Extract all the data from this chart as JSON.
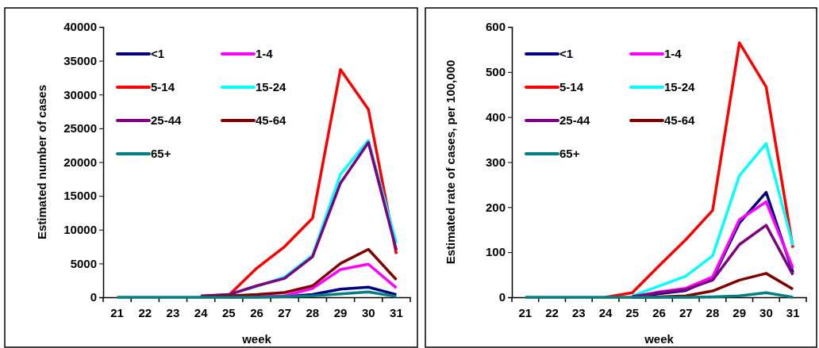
{
  "chart_data": [
    {
      "type": "line",
      "xlabel": "week",
      "ylabel": "Estimated number of cases",
      "categories": [
        "21",
        "22",
        "23",
        "24",
        "25",
        "26",
        "27",
        "28",
        "29",
        "30",
        "31"
      ],
      "ylim": [
        0,
        40000
      ],
      "yticks": [
        0,
        5000,
        10000,
        15000,
        20000,
        25000,
        30000,
        35000,
        40000
      ],
      "grid": false,
      "legend": "top left",
      "marker": "none",
      "line_style": "solid",
      "series": [
        {
          "name": "<1",
          "color": "#000080",
          "values": [
            null,
            null,
            null,
            null,
            null,
            null,
            100,
            400,
            1200,
            1500,
            400
          ]
        },
        {
          "name": "1-4",
          "color": "#ff00ff",
          "values": [
            null,
            null,
            null,
            null,
            0,
            100,
            200,
            1300,
            4100,
            4900,
            1400
          ]
        },
        {
          "name": "5-14",
          "color": "#ff0000",
          "values": [
            null,
            null,
            null,
            100,
            300,
            4300,
            7500,
            11700,
            33700,
            27800,
            6400
          ]
        },
        {
          "name": "15-24",
          "color": "#00ffff",
          "values": [
            null,
            null,
            null,
            100,
            400,
            1600,
            3000,
            6200,
            18200,
            23200,
            8000
          ]
        },
        {
          "name": "25-44",
          "color": "#800080",
          "values": [
            null,
            null,
            null,
            200,
            400,
            1700,
            2800,
            6000,
            16900,
            22900,
            7000
          ]
        },
        {
          "name": "45-64",
          "color": "#800000",
          "values": [
            null,
            null,
            null,
            100,
            200,
            400,
            700,
            1700,
            5000,
            7100,
            2600
          ]
        },
        {
          "name": "65+",
          "color": "#008080",
          "values": [
            0,
            0,
            0,
            0,
            0,
            0,
            100,
            200,
            500,
            800,
            100
          ]
        }
      ]
    },
    {
      "type": "line",
      "xlabel": "week",
      "ylabel": "Estimated rate of cases, per 100,000",
      "categories": [
        "21",
        "22",
        "23",
        "24",
        "25",
        "26",
        "27",
        "28",
        "29",
        "30",
        "31"
      ],
      "ylim": [
        0,
        600
      ],
      "yticks": [
        0,
        100,
        200,
        300,
        400,
        500,
        600
      ],
      "grid": false,
      "legend": "top left",
      "marker": "none",
      "line_style": "solid",
      "series": [
        {
          "name": "<1",
          "color": "#000080",
          "values": [
            null,
            null,
            null,
            null,
            0,
            8,
            15,
            42,
            165,
            233,
            55
          ]
        },
        {
          "name": "1-4",
          "color": "#ff00ff",
          "values": [
            null,
            null,
            null,
            null,
            0,
            12,
            20,
            45,
            172,
            212,
            65
          ]
        },
        {
          "name": "5-14",
          "color": "#ff0000",
          "values": [
            null,
            null,
            null,
            0,
            10,
            70,
            128,
            193,
            565,
            467,
            110
          ]
        },
        {
          "name": "15-24",
          "color": "#00ffff",
          "values": [
            null,
            null,
            null,
            null,
            3,
            25,
            47,
            92,
            270,
            341,
            115
          ]
        },
        {
          "name": "25-44",
          "color": "#800080",
          "values": [
            null,
            null,
            null,
            null,
            2,
            10,
            17,
            38,
            117,
            160,
            50
          ]
        },
        {
          "name": "45-64",
          "color": "#800000",
          "values": [
            null,
            null,
            null,
            null,
            0,
            1,
            3,
            14,
            38,
            53,
            18
          ]
        },
        {
          "name": "65+",
          "color": "#008080",
          "values": [
            0,
            0,
            0,
            0,
            0,
            0,
            0,
            1,
            3,
            10,
            0
          ]
        }
      ]
    }
  ]
}
